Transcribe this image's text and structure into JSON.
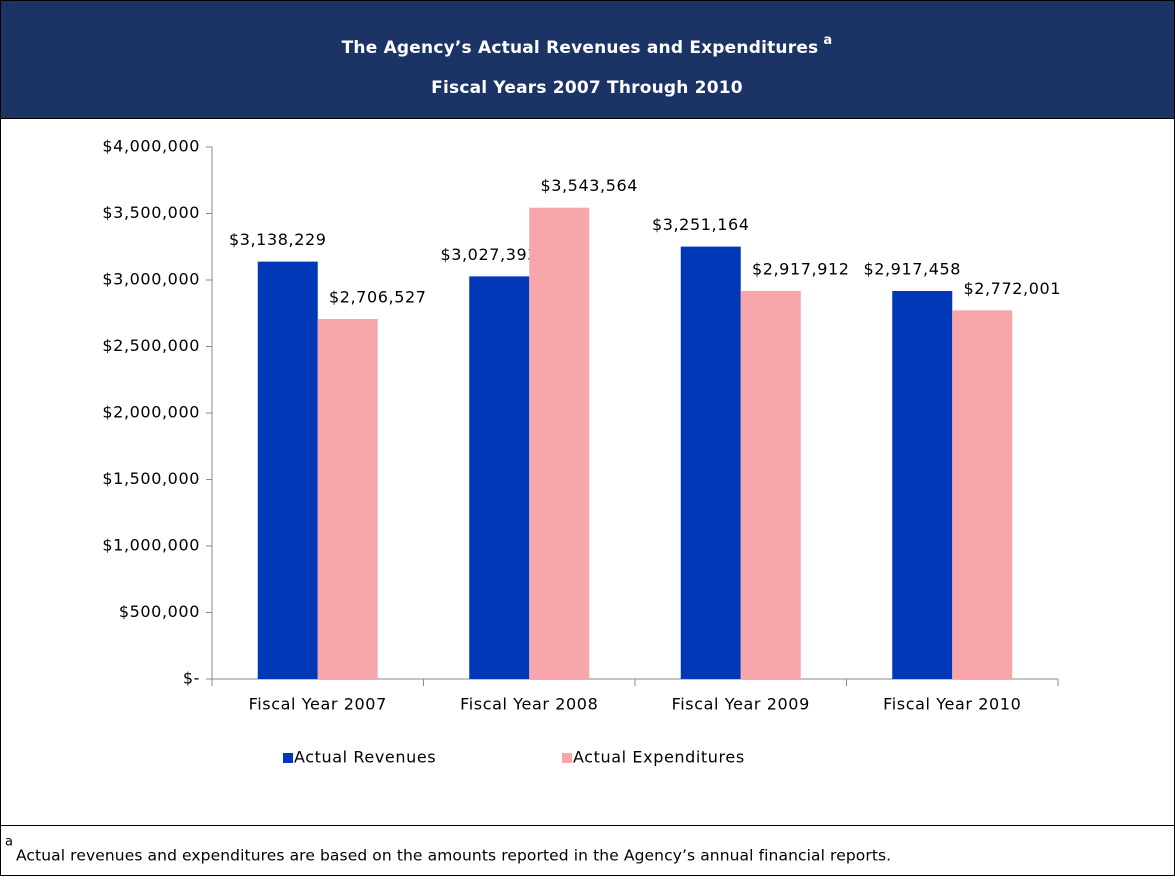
{
  "chart_data": {
    "type": "bar",
    "title": "The Agency’s Actual Revenues and Expenditures",
    "title_note": "a",
    "subtitle": "Fiscal Years 2007 Through 2010",
    "categories": [
      "Fiscal Year 2007",
      "Fiscal Year 2008",
      "Fiscal Year 2009",
      "Fiscal Year 2010"
    ],
    "series": [
      {
        "name": "Actual Revenues",
        "color": "#0038b8",
        "values": [
          3138229,
          3027393,
          3251164,
          2917458
        ],
        "value_labels": [
          "$3,138,229",
          "$3,027,393",
          "$3,251,164",
          "$2,917,458"
        ]
      },
      {
        "name": "Actual Expenditures",
        "color": "#f7a6ab",
        "values": [
          2706527,
          3543564,
          2917912,
          2772001
        ],
        "value_labels": [
          "$2,706,527",
          "$3,543,564",
          "$2,917,912",
          "$2,772,001"
        ]
      }
    ],
    "ylim": [
      0,
      4000000
    ],
    "yticks": [
      {
        "value": 0,
        "label": "$-"
      },
      {
        "value": 500000,
        "label": "$500,000"
      },
      {
        "value": 1000000,
        "label": "$1,000,000"
      },
      {
        "value": 1500000,
        "label": "$1,500,000"
      },
      {
        "value": 2000000,
        "label": "$2,000,000"
      },
      {
        "value": 2500000,
        "label": "$2,500,000"
      },
      {
        "value": 3000000,
        "label": "$3,000,000"
      },
      {
        "value": 3500000,
        "label": "$3,500,000"
      },
      {
        "value": 4000000,
        "label": "$4,000,000"
      }
    ],
    "grid": false,
    "legend": "bottom"
  },
  "footnote": {
    "marker": "a",
    "text": "Actual revenues and expenditures are based on the amounts reported in the Agency’s annual financial reports."
  }
}
